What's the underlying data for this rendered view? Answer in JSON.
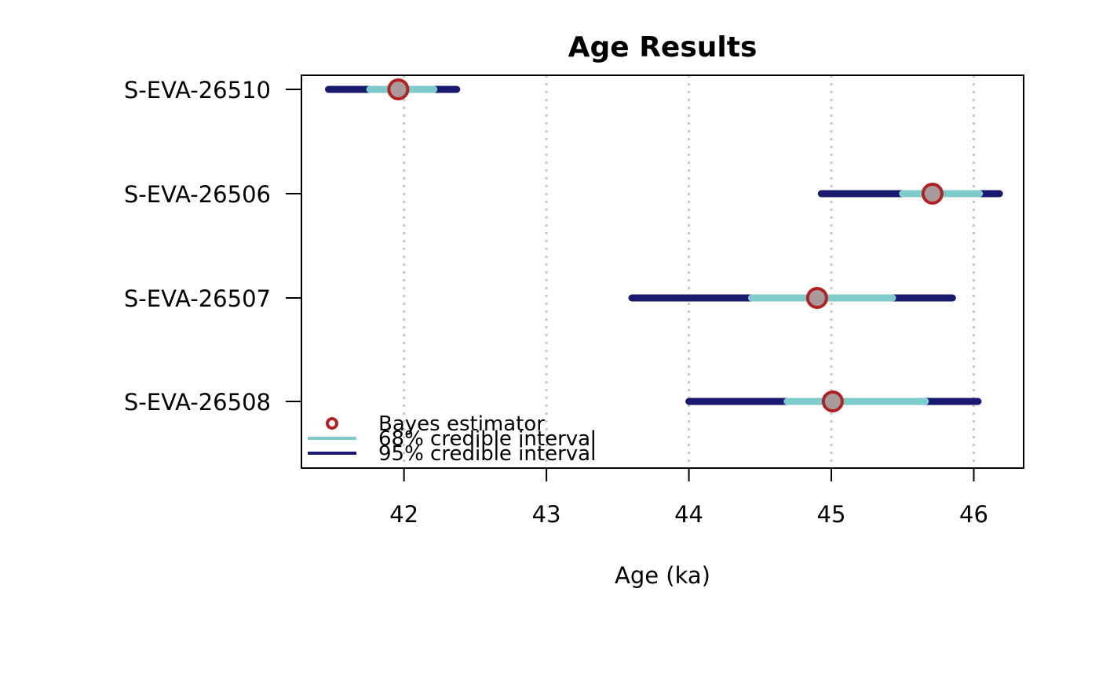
{
  "chart_data": {
    "type": "interval",
    "title": "Age Results",
    "xlabel": "Age (ka)",
    "ylabel": "",
    "xlim": [
      41.28,
      46.35
    ],
    "xticks": [
      42,
      43,
      44,
      45,
      46
    ],
    "grid": "vertical dotted",
    "legend_position": "bottom-left",
    "categories": [
      "S-EVA-26510",
      "S-EVA-26506",
      "S-EVA-26507",
      "S-EVA-26508"
    ],
    "series": [
      {
        "name": "95% credible interval",
        "color": "#191970",
        "values": [
          [
            41.47,
            42.37
          ],
          [
            44.93,
            46.18
          ],
          [
            43.6,
            45.85
          ],
          [
            44.0,
            46.03
          ]
        ]
      },
      {
        "name": "68% credible interval",
        "color": "#7ecbcb",
        "values": [
          [
            41.76,
            42.21
          ],
          [
            45.5,
            46.04
          ],
          [
            44.44,
            45.43
          ],
          [
            44.69,
            45.66
          ]
        ]
      },
      {
        "name": "Bayes estimator",
        "color": "#b22222",
        "values": [
          41.96,
          45.71,
          44.9,
          45.01
        ]
      }
    ],
    "legend": [
      "Bayes estimator",
      "68% credible interval",
      "95% credible interval"
    ]
  }
}
